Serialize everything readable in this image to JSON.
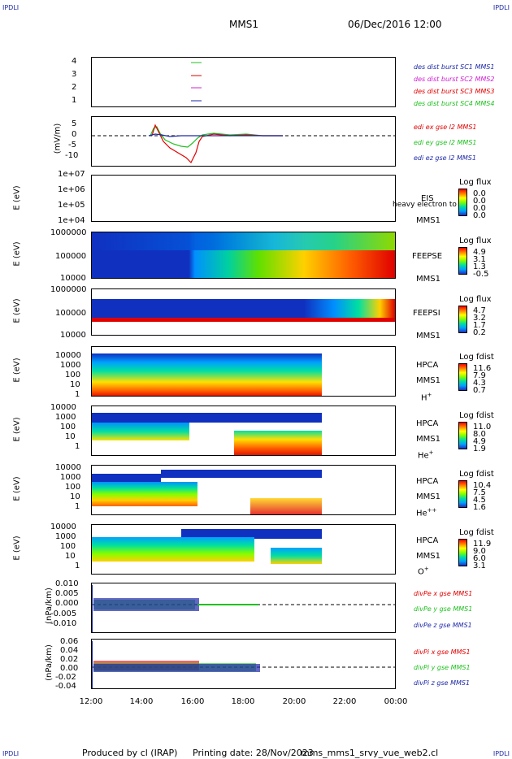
{
  "header": {
    "corner_label": "IPDLI",
    "title": "MMS1",
    "datetime": "06/Dec/2016 12:00"
  },
  "footer": {
    "produced": "Produced by cl (IRAP)",
    "printing": "Printing date: 28/Nov/2023",
    "script": "mms_mms1_srvy_vue_web2.cl"
  },
  "x_axis": {
    "ticks": [
      "12:00",
      "14:00",
      "16:00",
      "18:00",
      "20:00",
      "22:00",
      "00:00"
    ]
  },
  "panels": {
    "p1": {
      "ylabel": "",
      "yticks": [
        "4",
        "3",
        "2",
        "1"
      ],
      "legend": [
        {
          "text": "des dist burst SC1 MMS1",
          "color": "#1e2aa8"
        },
        {
          "text": "des dist burst SC2 MMS2",
          "color": "#d020d0"
        },
        {
          "text": "des dist burst SC3 MMS3",
          "color": "#e00000"
        },
        {
          "text": "des dist burst SC4 MMS4",
          "color": "#20c020"
        }
      ]
    },
    "p2": {
      "ylabel": "(mV/m)",
      "yticks": [
        "5",
        "0",
        "-5",
        "-10"
      ],
      "legend": [
        {
          "text": "edi ex gse l2 MMS1",
          "color": "#e00000"
        },
        {
          "text": "edi ey gse l2 MMS1",
          "color": "#20c020"
        },
        {
          "text": "edi ez gse l2 MMS1",
          "color": "#1e2aa8"
        }
      ]
    },
    "p3": {
      "ylabel": "E (eV)",
      "yticks": [
        "1e+07",
        "1e+06",
        "1e+05",
        "1e+04"
      ],
      "label1": "EIS",
      "label2": "MMS1",
      "overlay": "heavy electron to",
      "cb_title": "Log flux",
      "cb_vals": [
        "0.0",
        "0.0",
        "0.0",
        "0.0"
      ]
    },
    "p4": {
      "ylabel": "E (eV)",
      "yticks": [
        "1000000",
        "100000",
        "10000"
      ],
      "label1": "FEEPSE",
      "label2": "MMS1",
      "cb_title": "Log flux",
      "cb_vals": [
        "4.9",
        "3.1",
        "1.3",
        "-0.5"
      ]
    },
    "p5": {
      "ylabel": "E (eV)",
      "yticks": [
        "1000000",
        "100000",
        "10000"
      ],
      "label1": "FEEPSI",
      "label2": "MMS1",
      "cb_title": "Log flux",
      "cb_vals": [
        "4.7",
        "3.2",
        "1.7",
        "0.2"
      ]
    },
    "p6": {
      "ylabel": "E (eV)",
      "yticks": [
        "10000",
        "1000",
        "100",
        "10",
        "1"
      ],
      "label1": "HPCA",
      "label2": "MMS1",
      "species": "H",
      "charge": "+",
      "cb_title": "Log fdist",
      "cb_vals": [
        "11.6",
        "7.9",
        "4.3",
        "0.7"
      ]
    },
    "p7": {
      "ylabel": "E (eV)",
      "yticks": [
        "10000",
        "1000",
        "100",
        "10",
        "1"
      ],
      "label1": "HPCA",
      "label2": "MMS1",
      "species": "He",
      "charge": "+",
      "cb_title": "Log fdist",
      "cb_vals": [
        "11.0",
        "8.0",
        "4.9",
        "1.9"
      ]
    },
    "p8": {
      "ylabel": "E (eV)",
      "yticks": [
        "10000",
        "1000",
        "100",
        "10",
        "1"
      ],
      "label1": "HPCA",
      "label2": "MMS1",
      "species": "He",
      "charge": "++",
      "cb_title": "Log fdist",
      "cb_vals": [
        "10.4",
        "7.5",
        "4.5",
        "1.6"
      ]
    },
    "p9": {
      "ylabel": "E (eV)",
      "yticks": [
        "10000",
        "1000",
        "100",
        "10",
        "1"
      ],
      "label1": "HPCA",
      "label2": "MMS1",
      "species": "O",
      "charge": "+",
      "cb_title": "Log fdist",
      "cb_vals": [
        "11.9",
        "9.0",
        "6.0",
        "3.1"
      ]
    },
    "p10": {
      "ylabel": "(nPa/km)",
      "yticks": [
        "0.010",
        "0.005",
        "0.000",
        "-0.005",
        "-0.010"
      ],
      "legend": [
        {
          "text": "divPe x gse MMS1",
          "color": "#e00000"
        },
        {
          "text": "divPe y gse MMS1",
          "color": "#20c020"
        },
        {
          "text": "divPe z gse MMS1",
          "color": "#1e2aa8"
        }
      ]
    },
    "p11": {
      "ylabel": "(nPa/km)",
      "yticks": [
        "0.06",
        "0.04",
        "0.02",
        "0.00",
        "-0.02",
        "-0.04"
      ],
      "legend": [
        {
          "text": "divPi x gse MMS1",
          "color": "#e00000"
        },
        {
          "text": "divPi y gse MMS1",
          "color": "#20c020"
        },
        {
          "text": "divPi z gse MMS1",
          "color": "#1e2aa8"
        }
      ]
    }
  },
  "chart_data": {
    "type": "line",
    "title": "MMS1",
    "x_range": [
      "12:00",
      "00:00"
    ],
    "series": [
      {
        "name": "edi ex gse l2 MMS1",
        "x": [
          "14:40",
          "15:00",
          "15:30",
          "16:00",
          "16:10",
          "17:00",
          "18:00",
          "19:00"
        ],
        "values": [
          2,
          5,
          -3,
          -8,
          -11,
          0.5,
          0.5,
          0
        ]
      },
      {
        "name": "edi ey gse l2 MMS1",
        "x": [
          "14:40",
          "15:00",
          "15:30",
          "16:00",
          "16:10",
          "17:00",
          "18:00",
          "19:00"
        ],
        "values": [
          0,
          4,
          -2,
          -3,
          -4,
          1,
          1,
          0
        ]
      },
      {
        "name": "edi ez gse l2 MMS1",
        "x": [
          "14:40",
          "15:00",
          "15:30",
          "16:00",
          "16:10",
          "17:00",
          "18:00",
          "19:00"
        ],
        "values": [
          0,
          0.5,
          -0.3,
          0,
          0,
          0,
          0,
          0
        ]
      }
    ]
  }
}
